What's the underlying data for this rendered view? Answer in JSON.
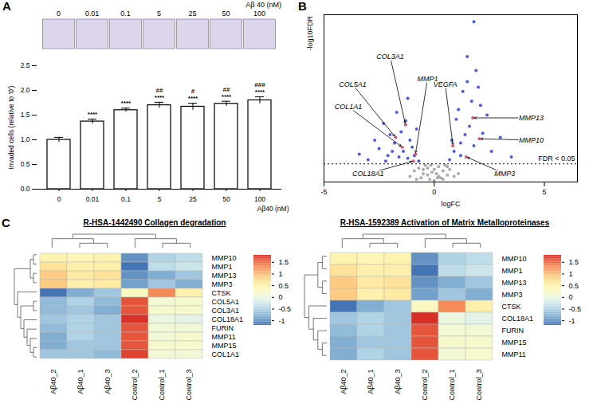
{
  "chart_data": [
    {
      "type": "bar",
      "panel_label": "A",
      "image_row_title": "Aβ 40 (nM)",
      "categories": [
        "0",
        "0.01",
        "0.1",
        "5",
        "25",
        "50",
        "100"
      ],
      "values": [
        1.0,
        1.37,
        1.6,
        1.7,
        1.67,
        1.73,
        1.8
      ],
      "errors": [
        0.05,
        0.05,
        0.04,
        0.06,
        0.07,
        0.05,
        0.07
      ],
      "significance_vs_control": [
        null,
        "****",
        "****",
        "****",
        "****",
        "****",
        "****"
      ],
      "significance_vs_lowest": [
        null,
        null,
        null,
        "##",
        "#",
        "##",
        "###"
      ],
      "color": "#ffffff",
      "x_label": "Aβ40 (nM)",
      "y_label": "Invaded cells (relative to '0')",
      "ylim": [
        0,
        2.5
      ],
      "yticks": [
        {
          "value": 0,
          "label": "0.0"
        },
        0.5,
        {
          "value": 1,
          "label": "1.0"
        },
        1.5,
        {
          "value": 2,
          "label": "2.0"
        },
        2.5
      ]
    },
    {
      "type": "scatter",
      "panel_label": "B",
      "x_label": "logFC",
      "y_label": "-log10FDR",
      "xlim": [
        -5,
        6.5
      ],
      "xticks": [
        -5,
        0,
        5
      ],
      "ylim": [
        0,
        12
      ],
      "yticks": [],
      "tick_labels": "x",
      "series": [
        {
          "color": "#aaaaaa",
          "x": [
            -1.1,
            -0.9,
            -0.7,
            -0.6,
            -0.5,
            -0.4,
            -0.3,
            -0.2,
            -0.1,
            0,
            0.1,
            0.2,
            0.3,
            0.4,
            0.5,
            0.6,
            0.7,
            0.9,
            1.1,
            -0.8,
            -0.3,
            0.2,
            0.6,
            -0.5,
            0.4,
            0.0,
            -0.15,
            0.15
          ],
          "y": [
            0.4,
            0.8,
            1.0,
            0.3,
            0.9,
            1.2,
            0.5,
            0.2,
            0.7,
            0.1,
            0.6,
            1.1,
            0.3,
            0.8,
            1.2,
            0.5,
            0.9,
            0.4,
            0.6,
            0.2,
            1.0,
            0.4,
            1.1,
            0.6,
            0.2,
            0.9,
            1.2,
            0.3
          ]
        },
        {
          "color": "#4a5ce6",
          "x": [
            -3.4,
            -3.0,
            -2.7,
            -2.5,
            -2.3,
            -2.1,
            -2.0,
            -1.8,
            -1.7,
            -1.5,
            -1.4,
            -1.3,
            -1.2,
            -1.1,
            -1.0,
            -0.9,
            -0.8,
            -0.7,
            -2.2,
            -1.6,
            -1.9,
            -1.2,
            0.7,
            0.8,
            0.9,
            1.0,
            1.1,
            1.2,
            1.3,
            1.4,
            1.5,
            1.6,
            1.7,
            1.8,
            2.0,
            2.2,
            2.4,
            2.6,
            3.0,
            3.5,
            1.9,
            1.2,
            1.5,
            2.1,
            1.8
          ],
          "y": [
            2.0,
            1.6,
            3.0,
            2.4,
            4.2,
            1.9,
            3.4,
            2.8,
            5.0,
            3.6,
            2.2,
            4.4,
            1.7,
            3.0,
            2.5,
            1.9,
            3.8,
            1.5,
            1.5,
            1.8,
            2.2,
            6.0,
            1.6,
            3.0,
            2.2,
            4.5,
            5.2,
            2.8,
            6.5,
            3.4,
            7.2,
            4.0,
            5.8,
            2.6,
            6.8,
            3.5,
            4.8,
            2.2,
            3.2,
            1.8,
            8.0,
            1.9,
            9.0,
            5.5,
            11.5
          ]
        },
        {
          "color": "#e0507a",
          "x": [
            -1.3,
            -1.75,
            -1.45,
            -0.85,
            -0.95,
            0.85,
            1.75,
            2.05,
            1.45
          ],
          "y": [
            4.1,
            3.2,
            2.5,
            2.0,
            1.5,
            2.6,
            4.6,
            3.1,
            1.8
          ]
        }
      ],
      "threshold": {
        "y": 1.3,
        "label": "FDR < 0.05"
      },
      "annotations": [
        {
          "text": "COL3A1",
          "x": -2.0,
          "y": 9.0
        },
        {
          "text": "COL5A1",
          "x": -3.7,
          "y": 7.0
        },
        {
          "text": "COL1A1",
          "x": -3.9,
          "y": 5.4
        },
        {
          "text": "MMP1",
          "x": -0.3,
          "y": 7.4
        },
        {
          "text": "COL18A1",
          "x": -3.0,
          "y": 0.6
        },
        {
          "text": "VEGFA",
          "x": 0.5,
          "y": 7.0
        },
        {
          "text": "MMP13",
          "x": 4.4,
          "y": 4.6
        },
        {
          "text": "MMP10",
          "x": 4.4,
          "y": 3.0
        },
        {
          "text": "MMP3",
          "x": 3.2,
          "y": 0.6
        }
      ]
    },
    {
      "type": "heatmap",
      "panel_label": "C",
      "title": "R-HSA-1442490 Collagen degradation",
      "columns": [
        "Aβ40_2",
        "Aβ40_1",
        "Aβ40_3",
        "Control_2",
        "Control_1",
        "Control_3"
      ],
      "rows": [
        "MMP10",
        "MMP1",
        "MMP13",
        "MMP3",
        "CTSK",
        "COL5A1",
        "COL3A1",
        "COL18A1",
        "FURIN",
        "MMP11",
        "MMP15",
        "COL1A1"
      ],
      "cells": [
        [
          0.45,
          0.4,
          0.45,
          -1.0,
          -0.5,
          -0.4
        ],
        [
          0.7,
          0.5,
          0.5,
          -1.2,
          -0.4,
          -0.3
        ],
        [
          0.9,
          0.6,
          0.7,
          -1.0,
          -0.8,
          -0.6
        ],
        [
          0.9,
          0.5,
          0.6,
          -0.9,
          -0.6,
          -0.8
        ],
        [
          -1.2,
          -0.8,
          -0.6,
          0.3,
          1.3,
          0.5
        ],
        [
          -0.7,
          -0.5,
          -0.7,
          1.6,
          0.1,
          0.2
        ],
        [
          -0.7,
          -0.6,
          -0.8,
          1.6,
          0.2,
          0.2
        ],
        [
          -0.6,
          -0.5,
          -0.6,
          1.8,
          0.0,
          -0.1
        ],
        [
          -0.7,
          -0.5,
          -0.6,
          1.6,
          0.1,
          0.1
        ],
        [
          -0.8,
          -0.5,
          -0.6,
          1.6,
          0.1,
          0.2
        ],
        [
          -0.8,
          -0.6,
          -0.6,
          1.6,
          0.2,
          0.2
        ],
        [
          -0.6,
          -0.6,
          -0.7,
          1.7,
          0.1,
          0.1
        ]
      ],
      "colorbar": {
        "lim": [
          -1.2,
          1.8
        ],
        "ticks": [
          -1,
          -0.5,
          0,
          0.5,
          1,
          1.5
        ]
      }
    },
    {
      "type": "heatmap",
      "title": "R-HSA-1592389 Activation of Matrix Metalloproteinases",
      "columns": [
        "Aβ40_2",
        "Aβ40_1",
        "Aβ40_3",
        "Control_2",
        "Control_1",
        "Control_3"
      ],
      "rows": [
        "MMP10",
        "MMP1",
        "MMP13",
        "MMP3",
        "CTSK",
        "COL18A1",
        "FURIN",
        "MMP15",
        "MMP11"
      ],
      "cells": [
        [
          0.45,
          0.4,
          0.45,
          -1.0,
          -0.5,
          -0.4
        ],
        [
          0.7,
          0.5,
          0.5,
          -1.2,
          -0.4,
          -0.3
        ],
        [
          0.9,
          0.6,
          0.7,
          -1.0,
          -0.8,
          -0.6
        ],
        [
          0.9,
          0.5,
          0.6,
          -0.9,
          -0.6,
          -0.8
        ],
        [
          -1.2,
          -0.8,
          -0.6,
          0.3,
          1.3,
          0.5
        ],
        [
          -0.6,
          -0.5,
          -0.6,
          1.8,
          0.0,
          -0.1
        ],
        [
          -0.7,
          -0.5,
          -0.6,
          1.6,
          0.1,
          0.1
        ],
        [
          -0.8,
          -0.6,
          -0.6,
          1.6,
          0.2,
          0.2
        ],
        [
          -0.8,
          -0.5,
          -0.6,
          1.6,
          0.1,
          0.2
        ]
      ],
      "colorbar": {
        "lim": [
          -1.2,
          1.8
        ],
        "ticks": [
          -1,
          -0.5,
          0,
          0.5,
          1,
          1.5
        ]
      }
    }
  ]
}
